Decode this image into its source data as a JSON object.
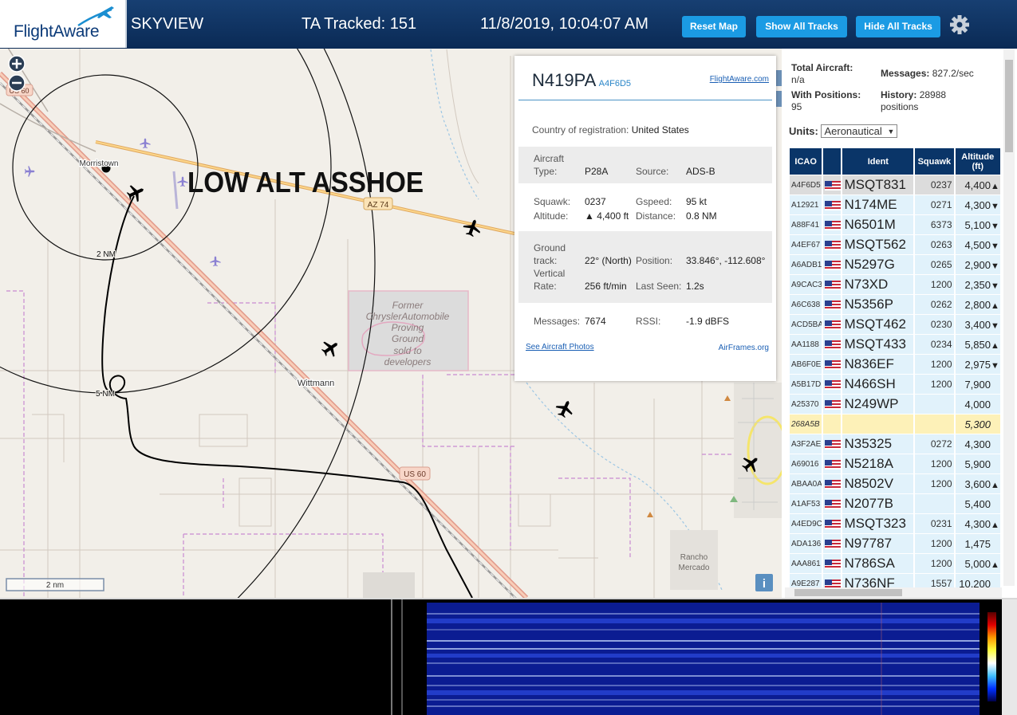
{
  "header": {
    "logo": "FlightAware",
    "title": "SKYVIEW",
    "tracked": "TA Tracked: 151",
    "datetime": "11/8/2019, 10:04:07 AM",
    "buttons": [
      "Reset Map",
      "Show All Tracks",
      "Hide All Tracks"
    ]
  },
  "map": {
    "road_labels": [
      "US 60",
      "AZ 74",
      "US 60"
    ],
    "places": [
      "Morristown",
      "Wittmann"
    ],
    "rings": [
      "2 NM",
      "5 NM"
    ],
    "annotation": "LOW ALT ASSHOE",
    "poi": [
      "Former",
      "ChryslerAutomobile",
      "Proving",
      "Ground",
      "sold to",
      "developers"
    ],
    "place_area": [
      "Rancho",
      "Mercado"
    ],
    "scale": "2 nm",
    "info": "i"
  },
  "popup": {
    "callsign": "N419PA",
    "hex": "A4F6D5",
    "link": "FlightAware.com",
    "country_label": "Country of registration:",
    "country": "United States",
    "fields": [
      [
        "Aircraft Type:",
        "P28A",
        "Source:",
        "ADS-B"
      ],
      [
        "Squawk:",
        "0237",
        "Gspeed:",
        "95 kt"
      ],
      [
        "Altitude:",
        "▲ 4,400 ft",
        "Distance:",
        "0.8 NM"
      ],
      [
        "Ground track:",
        "22° (North)",
        "Position:",
        "33.846°, -112.608°"
      ],
      [
        "Vertical Rate:",
        "256 ft/min",
        "Last Seen:",
        "1.2s"
      ],
      [
        "Messages:",
        "7674",
        "RSSI:",
        "-1.9 dBFS"
      ]
    ],
    "photos_link": "See Aircraft Photos",
    "airframes_link": "AirFrames.org"
  },
  "sidebar": {
    "total_label": "Total Aircraft:",
    "total": "n/a",
    "messages_label": "Messages:",
    "messages": "827.2/sec",
    "positions_label": "With Positions:",
    "positions": "95",
    "history_label": "History:",
    "history": "28988 positions",
    "units_label": "Units:",
    "units": "Aeronautical",
    "table": {
      "columns": [
        "ICAO",
        "Ident",
        "Squawk",
        "Altitude (ft)"
      ],
      "rows": [
        {
          "icao": "A4F6D5",
          "ident": "MSQT831",
          "squawk": "0237",
          "altitude": "4,400",
          "trend": "▲",
          "color": "#dcdcdc"
        },
        {
          "icao": "A12921",
          "ident": "N174ME",
          "squawk": "0271",
          "altitude": "4,300",
          "trend": "▼"
        },
        {
          "icao": "A88F41",
          "ident": "N6501M",
          "squawk": "6373",
          "altitude": "5,100",
          "trend": "▼"
        },
        {
          "icao": "A4EF67",
          "ident": "MSQT562",
          "squawk": "0263",
          "altitude": "4,500",
          "trend": "▼"
        },
        {
          "icao": "A6ADB1",
          "ident": "N5297G",
          "squawk": "0265",
          "altitude": "2,900",
          "trend": "▼"
        },
        {
          "icao": "A9CAC3",
          "ident": "N73XD",
          "squawk": "1200",
          "altitude": "2,350",
          "trend": "▼"
        },
        {
          "icao": "A6C638",
          "ident": "N5356P",
          "squawk": "0262",
          "altitude": "2,800",
          "trend": "▲"
        },
        {
          "icao": "ACD5BA",
          "ident": "MSQT462",
          "squawk": "0230",
          "altitude": "3,400",
          "trend": "▼"
        },
        {
          "icao": "AA1188",
          "ident": "MSQT433",
          "squawk": "0234",
          "altitude": "5,850",
          "trend": "▲"
        },
        {
          "icao": "AB6F0E",
          "ident": "N836EF",
          "squawk": "1200",
          "altitude": "2,975",
          "trend": "▼"
        },
        {
          "icao": "A5B17D",
          "ident": "N466SH",
          "squawk": "1200",
          "altitude": "7,900"
        },
        {
          "icao": "A25370",
          "ident": "N249WP",
          "altitude": "4,000"
        },
        {
          "icao": "268A5B",
          "altitude": "5,300",
          "color": "#fdf1b8"
        },
        {
          "icao": "A3F2AE",
          "ident": "N35325",
          "squawk": "0272",
          "altitude": "4,300"
        },
        {
          "icao": "A69016",
          "ident": "N5218A",
          "squawk": "1200",
          "altitude": "5,900"
        },
        {
          "icao": "ABAA0A",
          "ident": "N8502V",
          "squawk": "1200",
          "altitude": "3,600",
          "trend": "▲"
        },
        {
          "icao": "A1AF53",
          "ident": "N2077B",
          "altitude": "5,400"
        },
        {
          "icao": "A4ED9C",
          "ident": "MSQT323",
          "squawk": "0231",
          "altitude": "4,300",
          "trend": "▲"
        },
        {
          "icao": "ADA136",
          "ident": "N97787",
          "squawk": "1200",
          "altitude": "1,475"
        },
        {
          "icao": "AAA861",
          "ident": "N786SA",
          "squawk": "1200",
          "altitude": "5,000",
          "trend": "▲"
        },
        {
          "icao": "A9E287",
          "ident": "N736NF",
          "squawk": "1557",
          "altitude": "10,200"
        }
      ]
    }
  }
}
